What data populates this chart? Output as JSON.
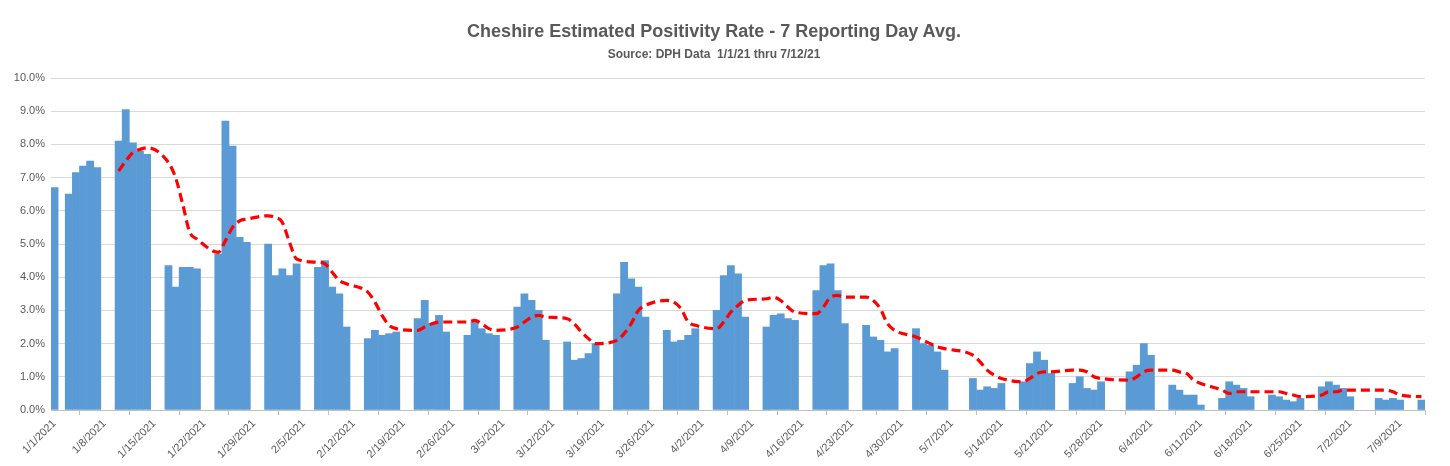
{
  "chart_data": {
    "type": "bar",
    "title": "Cheshire Estimated Positivity Rate - 7 Reporting Day Avg.",
    "subtitle": "Source: DPH Data  1/1/21 thru 7/12/21",
    "x": [
      "2021-01-01",
      "2021-01-03",
      "2021-01-04",
      "2021-01-05",
      "2021-01-06",
      "2021-01-07",
      "2021-01-10",
      "2021-01-11",
      "2021-01-12",
      "2021-01-13",
      "2021-01-14",
      "2021-01-17",
      "2021-01-18",
      "2021-01-19",
      "2021-01-20",
      "2021-01-21",
      "2021-01-24",
      "2021-01-25",
      "2021-01-26",
      "2021-01-27",
      "2021-01-28",
      "2021-01-31",
      "2021-02-01",
      "2021-02-02",
      "2021-02-03",
      "2021-02-04",
      "2021-02-07",
      "2021-02-08",
      "2021-02-09",
      "2021-02-10",
      "2021-02-11",
      "2021-02-14",
      "2021-02-15",
      "2021-02-16",
      "2021-02-17",
      "2021-02-18",
      "2021-02-21",
      "2021-02-22",
      "2021-02-23",
      "2021-02-24",
      "2021-02-25",
      "2021-02-28",
      "2021-03-01",
      "2021-03-02",
      "2021-03-03",
      "2021-03-04",
      "2021-03-07",
      "2021-03-08",
      "2021-03-09",
      "2021-03-10",
      "2021-03-11",
      "2021-03-14",
      "2021-03-15",
      "2021-03-16",
      "2021-03-17",
      "2021-03-18",
      "2021-03-21",
      "2021-03-22",
      "2021-03-23",
      "2021-03-24",
      "2021-03-25",
      "2021-03-28",
      "2021-03-29",
      "2021-03-30",
      "2021-03-31",
      "2021-04-01",
      "2021-04-04",
      "2021-04-05",
      "2021-04-06",
      "2021-04-07",
      "2021-04-08",
      "2021-04-11",
      "2021-04-12",
      "2021-04-13",
      "2021-04-14",
      "2021-04-15",
      "2021-04-18",
      "2021-04-19",
      "2021-04-20",
      "2021-04-21",
      "2021-04-22",
      "2021-04-25",
      "2021-04-26",
      "2021-04-27",
      "2021-04-28",
      "2021-04-29",
      "2021-05-02",
      "2021-05-03",
      "2021-05-04",
      "2021-05-05",
      "2021-05-06",
      "2021-05-10",
      "2021-05-11",
      "2021-05-12",
      "2021-05-13",
      "2021-05-14",
      "2021-05-17",
      "2021-05-18",
      "2021-05-19",
      "2021-05-20",
      "2021-05-21",
      "2021-05-24",
      "2021-05-25",
      "2021-05-26",
      "2021-05-27",
      "2021-05-28",
      "2021-06-01",
      "2021-06-02",
      "2021-06-03",
      "2021-06-04",
      "2021-06-07",
      "2021-06-08",
      "2021-06-09",
      "2021-06-10",
      "2021-06-11",
      "2021-06-14",
      "2021-06-15",
      "2021-06-16",
      "2021-06-17",
      "2021-06-18",
      "2021-06-21",
      "2021-06-22",
      "2021-06-23",
      "2021-06-24",
      "2021-06-25",
      "2021-06-28",
      "2021-06-29",
      "2021-06-30",
      "2021-07-01",
      "2021-07-02",
      "2021-07-06",
      "2021-07-07",
      "2021-07-08",
      "2021-07-09",
      "2021-07-12"
    ],
    "series": [
      {
        "color": "#5b9bd5",
        "values": [
          6.7,
          6.5,
          7.15,
          7.35,
          7.5,
          7.3,
          8.1,
          9.05,
          8.05,
          7.8,
          7.7,
          4.35,
          3.7,
          4.3,
          4.3,
          4.25,
          4.7,
          8.7,
          7.95,
          5.2,
          5.05,
          5.0,
          4.05,
          4.25,
          4.05,
          4.4,
          4.3,
          4.5,
          3.7,
          3.5,
          2.5,
          2.15,
          2.4,
          2.25,
          2.3,
          2.35,
          2.75,
          3.3,
          2.6,
          2.85,
          2.35,
          2.25,
          2.65,
          2.45,
          2.3,
          2.25,
          3.1,
          3.5,
          3.3,
          3.0,
          2.1,
          2.05,
          1.5,
          1.55,
          1.7,
          2.0,
          3.5,
          4.45,
          3.95,
          3.7,
          2.8,
          2.4,
          2.05,
          2.1,
          2.25,
          2.45,
          3.0,
          4.05,
          4.35,
          4.1,
          2.8,
          2.5,
          2.85,
          2.9,
          2.75,
          2.7,
          3.6,
          4.35,
          4.4,
          3.6,
          2.6,
          2.55,
          2.2,
          2.1,
          1.75,
          1.85,
          2.45,
          2.0,
          1.95,
          1.75,
          1.2,
          0.95,
          0.6,
          0.7,
          0.65,
          0.8,
          0.85,
          1.4,
          1.75,
          1.5,
          1.1,
          0.8,
          1.0,
          0.65,
          0.6,
          0.85,
          1.15,
          1.35,
          2.0,
          1.65,
          0.75,
          0.6,
          0.45,
          0.45,
          0.15,
          0.35,
          0.85,
          0.75,
          0.65,
          0.4,
          0.45,
          0.4,
          0.3,
          0.25,
          0.35,
          0.7,
          0.85,
          0.75,
          0.65,
          0.4,
          0.35,
          0.3,
          0.35,
          0.3,
          0.3
        ]
      },
      {
        "type": "line",
        "color": "#ff0000",
        "line_style": "dashed",
        "x": [
          "2021-01-10",
          "2021-01-11",
          "2021-01-12",
          "2021-01-13",
          "2021-01-14",
          "2021-01-17",
          "2021-01-18",
          "2021-01-19",
          "2021-01-20",
          "2021-01-21",
          "2021-01-24",
          "2021-01-25",
          "2021-01-26",
          "2021-01-27",
          "2021-01-28",
          "2021-01-31",
          "2021-02-01",
          "2021-02-02",
          "2021-02-03",
          "2021-02-04",
          "2021-02-07",
          "2021-02-08",
          "2021-02-09",
          "2021-02-10",
          "2021-02-11",
          "2021-02-14",
          "2021-02-15",
          "2021-02-16",
          "2021-02-17",
          "2021-02-18",
          "2021-02-21",
          "2021-02-22",
          "2021-02-23",
          "2021-02-24",
          "2021-02-25",
          "2021-02-28",
          "2021-03-01",
          "2021-03-02",
          "2021-03-03",
          "2021-03-04",
          "2021-03-07",
          "2021-03-08",
          "2021-03-09",
          "2021-03-10",
          "2021-03-11",
          "2021-03-14",
          "2021-03-15",
          "2021-03-16",
          "2021-03-17",
          "2021-03-18",
          "2021-03-21",
          "2021-03-22",
          "2021-03-23",
          "2021-03-24",
          "2021-03-25",
          "2021-03-28",
          "2021-03-29",
          "2021-03-30",
          "2021-03-31",
          "2021-04-01",
          "2021-04-04",
          "2021-04-05",
          "2021-04-06",
          "2021-04-07",
          "2021-04-08",
          "2021-04-11",
          "2021-04-12",
          "2021-04-13",
          "2021-04-14",
          "2021-04-15",
          "2021-04-18",
          "2021-04-19",
          "2021-04-20",
          "2021-04-21",
          "2021-04-22",
          "2021-04-25",
          "2021-04-26",
          "2021-04-27",
          "2021-04-28",
          "2021-04-29",
          "2021-05-02",
          "2021-05-03",
          "2021-05-04",
          "2021-05-05",
          "2021-05-06",
          "2021-05-10",
          "2021-05-11",
          "2021-05-12",
          "2021-05-13",
          "2021-05-14",
          "2021-05-17",
          "2021-05-18",
          "2021-05-19",
          "2021-05-20",
          "2021-05-21",
          "2021-05-24",
          "2021-05-25",
          "2021-05-26",
          "2021-05-27",
          "2021-05-28",
          "2021-06-01",
          "2021-06-02",
          "2021-06-03",
          "2021-06-04",
          "2021-06-07",
          "2021-06-08",
          "2021-06-09",
          "2021-06-10",
          "2021-06-11",
          "2021-06-14",
          "2021-06-15",
          "2021-06-16",
          "2021-06-17",
          "2021-06-18",
          "2021-06-21",
          "2021-06-22",
          "2021-06-23",
          "2021-06-24",
          "2021-06-25",
          "2021-06-28",
          "2021-06-29",
          "2021-06-30",
          "2021-07-01",
          "2021-07-02",
          "2021-07-06",
          "2021-07-07",
          "2021-07-08",
          "2021-07-09",
          "2021-07-12"
        ],
        "values": [
          7.2,
          7.5,
          7.75,
          7.85,
          7.9,
          7.45,
          7.0,
          6.2,
          5.35,
          5.15,
          4.75,
          5.1,
          5.5,
          5.7,
          5.75,
          5.85,
          5.8,
          5.65,
          5.05,
          4.55,
          4.45,
          4.4,
          4.15,
          3.9,
          3.8,
          3.55,
          3.25,
          2.85,
          2.55,
          2.45,
          2.4,
          2.5,
          2.6,
          2.65,
          2.65,
          2.65,
          2.7,
          2.6,
          2.45,
          2.4,
          2.5,
          2.65,
          2.8,
          2.85,
          2.8,
          2.75,
          2.6,
          2.35,
          2.15,
          2.0,
          2.1,
          2.3,
          2.6,
          3.0,
          3.15,
          3.3,
          3.25,
          3.05,
          2.65,
          2.55,
          2.45,
          2.65,
          2.95,
          3.15,
          3.3,
          3.35,
          3.4,
          3.3,
          3.1,
          2.95,
          2.9,
          3.1,
          3.4,
          3.45,
          3.4,
          3.4,
          3.3,
          3.05,
          2.6,
          2.4,
          2.2,
          2.1,
          2.0,
          1.9,
          1.85,
          1.65,
          1.45,
          1.2,
          1.05,
          0.95,
          0.85,
          0.95,
          1.1,
          1.15,
          1.15,
          1.2,
          1.2,
          1.15,
          1.0,
          0.95,
          0.9,
          1.0,
          1.15,
          1.2,
          1.2,
          1.15,
          1.1,
          0.9,
          0.8,
          0.6,
          0.5,
          0.55,
          0.55,
          0.55,
          0.55,
          0.55,
          0.5,
          0.45,
          0.4,
          0.45,
          0.55,
          0.55,
          0.6,
          0.6,
          0.6,
          0.6,
          0.55,
          0.45,
          0.4
        ]
      }
    ],
    "xlim": [
      "2020-12-31T12:00",
      "2021-07-12T12:00"
    ],
    "xticks": [
      {
        "value": "2021-01-01",
        "label": "1/1/2021"
      },
      {
        "value": "2021-01-08",
        "label": "1/8/2021"
      },
      {
        "value": "2021-01-15",
        "label": "1/15/2021"
      },
      {
        "value": "2021-01-22",
        "label": "1/22/2021"
      },
      {
        "value": "2021-01-29",
        "label": "1/29/2021"
      },
      {
        "value": "2021-02-05",
        "label": "2/5/2021"
      },
      {
        "value": "2021-02-12",
        "label": "2/12/2021"
      },
      {
        "value": "2021-02-19",
        "label": "2/19/2021"
      },
      {
        "value": "2021-02-26",
        "label": "2/26/2021"
      },
      {
        "value": "2021-03-05",
        "label": "3/5/2021"
      },
      {
        "value": "2021-03-12",
        "label": "3/12/2021"
      },
      {
        "value": "2021-03-19",
        "label": "3/19/2021"
      },
      {
        "value": "2021-03-26",
        "label": "3/26/2021"
      },
      {
        "value": "2021-04-02",
        "label": "4/2/2021"
      },
      {
        "value": "2021-04-09",
        "label": "4/9/2021"
      },
      {
        "value": "2021-04-16",
        "label": "4/16/2021"
      },
      {
        "value": "2021-04-23",
        "label": "4/23/2021"
      },
      {
        "value": "2021-04-30",
        "label": "4/30/2021"
      },
      {
        "value": "2021-05-07",
        "label": "5/7/2021"
      },
      {
        "value": "2021-05-14",
        "label": "5/14/2021"
      },
      {
        "value": "2021-05-21",
        "label": "5/21/2021"
      },
      {
        "value": "2021-05-28",
        "label": "5/28/2021"
      },
      {
        "value": "2021-06-04",
        "label": "6/4/2021"
      },
      {
        "value": "2021-06-11",
        "label": "6/11/2021"
      },
      {
        "value": "2021-06-18",
        "label": "6/18/2021"
      },
      {
        "value": "2021-06-25",
        "label": "6/25/2021"
      },
      {
        "value": "2021-07-02",
        "label": "7/2/2021"
      },
      {
        "value": "2021-07-09",
        "label": "7/9/2021"
      }
    ],
    "ylim": [
      0,
      10
    ],
    "yticks": [
      {
        "value": 0,
        "label": "0.0%"
      },
      {
        "value": 1,
        "label": "1.0%"
      },
      {
        "value": 2,
        "label": "2.0%"
      },
      {
        "value": 3,
        "label": "3.0%"
      },
      {
        "value": 4,
        "label": "4.0%"
      },
      {
        "value": 5,
        "label": "5.0%"
      },
      {
        "value": 6,
        "label": "6.0%"
      },
      {
        "value": 7,
        "label": "7.0%"
      },
      {
        "value": 8,
        "label": "8.0%"
      },
      {
        "value": 9,
        "label": "9.0%"
      },
      {
        "value": 10,
        "label": "10.0%"
      }
    ],
    "grid": "y"
  }
}
